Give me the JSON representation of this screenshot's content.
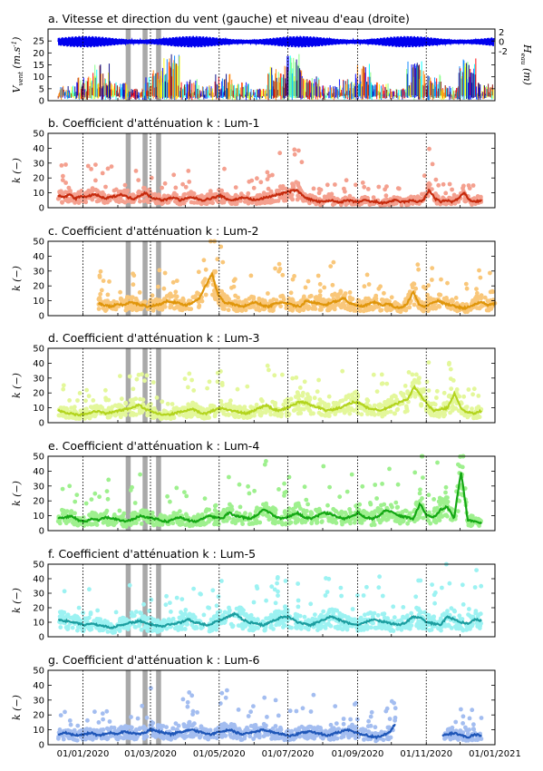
{
  "chart_data": [
    {
      "type": "line",
      "title": "a. Vitesse et direction du vent (gauche) et niveau d'eau (droite)",
      "ylabel": "V_vent (m.s^-1)",
      "ylabel_right": "H_eau (m)",
      "yticks": [
        "0",
        "5",
        "10",
        "15",
        "20",
        "25"
      ],
      "yticks_right": [
        "-2",
        "0",
        "2"
      ],
      "ylim": [
        0,
        30
      ],
      "ylim_right": [
        -2.5,
        2.5
      ],
      "grid": "vertical dotted",
      "series": [
        {
          "name": "",
          "color": "#0000ee",
          "description_values": {
            "mean": 0,
            "amplitude": 1.1
          }
        },
        {
          "name": "",
          "colormap": "jet",
          "values_approx": [
            5,
            8,
            12,
            6,
            4,
            10,
            15,
            7,
            5,
            9,
            6,
            4,
            11,
            16,
            8,
            5,
            7,
            12,
            6,
            4,
            13,
            9,
            5,
            14,
            6
          ]
        }
      ]
    },
    {
      "type": "scatter",
      "title": "b. Coefficient d'atténuation k : Lum-1",
      "ylabel": "k (−)",
      "ylim": [
        0,
        50
      ],
      "yticks": [
        "0",
        "10",
        "20",
        "30",
        "40",
        "50"
      ],
      "series": [
        {
          "name": "",
          "color_points": "#f4a08f",
          "color_line": "#c62a0d",
          "start": "2019-12-10",
          "end": "2020-12-20",
          "values": [
            8,
            7,
            9,
            6,
            8,
            7,
            9,
            8,
            6,
            7,
            8,
            9,
            7,
            6,
            8,
            10,
            7,
            6,
            5,
            6,
            7,
            5,
            6,
            7,
            6,
            5,
            6,
            7,
            8,
            6,
            5,
            6,
            7,
            6,
            5,
            6,
            7,
            8,
            9,
            10,
            11,
            12,
            9,
            6,
            5,
            4,
            4,
            5,
            4,
            4,
            5,
            4,
            4,
            5,
            4,
            4,
            3,
            4,
            5,
            4,
            4,
            5,
            4,
            5,
            12,
            6,
            4,
            5,
            4,
            6,
            10,
            5,
            4,
            5
          ]
        }
      ]
    },
    {
      "type": "scatter",
      "title": "c. Coefficient d'atténuation k : Lum-2",
      "ylabel": "k (−)",
      "ylim": [
        0,
        50
      ],
      "yticks": [
        "0",
        "10",
        "20",
        "30",
        "40",
        "50"
      ],
      "series": [
        {
          "name": "",
          "color_points": "#f9c77a",
          "color_line": "#e0960b",
          "start": "2020-01-15",
          "end": "2021-01-01",
          "values": [
            8,
            7,
            6,
            8,
            7,
            9,
            8,
            7,
            6,
            7,
            8,
            10,
            9,
            8,
            7,
            9,
            12,
            20,
            28,
            14,
            9,
            8,
            7,
            6,
            8,
            9,
            7,
            6,
            8,
            9,
            8,
            7,
            6,
            10,
            9,
            8,
            7,
            9,
            10,
            12,
            8,
            7,
            6,
            8,
            9,
            7,
            8,
            6,
            5,
            8,
            16,
            7,
            6,
            9,
            10,
            8,
            7,
            6,
            5,
            6,
            8,
            9,
            7,
            8
          ]
        }
      ]
    },
    {
      "type": "scatter",
      "title": "d. Coefficient d'atténuation k : Lum-3",
      "ylabel": "k (−)",
      "ylim": [
        0,
        50
      ],
      "yticks": [
        "0",
        "10",
        "20",
        "30",
        "40",
        "50"
      ],
      "series": [
        {
          "name": "",
          "color_points": "#e3f79a",
          "color_line": "#b3d41e",
          "start": "2019-12-10",
          "end": "2020-12-20",
          "values": [
            8,
            7,
            6,
            5,
            6,
            7,
            8,
            6,
            7,
            8,
            9,
            10,
            12,
            9,
            7,
            6,
            5,
            6,
            7,
            8,
            9,
            7,
            6,
            8,
            10,
            9,
            8,
            7,
            6,
            8,
            10,
            12,
            9,
            8,
            10,
            12,
            14,
            13,
            11,
            10,
            8,
            9,
            10,
            12,
            14,
            13,
            10,
            9,
            8,
            10,
            12,
            14,
            16,
            24,
            18,
            12,
            8,
            9,
            10,
            20,
            9,
            7,
            6,
            8
          ]
        }
      ]
    },
    {
      "type": "scatter",
      "title": "e. Coefficient d'atténuation k : Lum-4",
      "ylabel": "k (−)",
      "ylim": [
        0,
        50
      ],
      "yticks": [
        "0",
        "10",
        "20",
        "30",
        "40",
        "50"
      ],
      "series": [
        {
          "name": "",
          "color_points": "#9ef08e",
          "color_line": "#14a814",
          "start": "2019-12-10",
          "end": "2020-12-20",
          "values": [
            8,
            9,
            10,
            7,
            6,
            8,
            7,
            9,
            8,
            7,
            6,
            8,
            10,
            9,
            8,
            7,
            6,
            8,
            9,
            7,
            6,
            8,
            10,
            9,
            8,
            12,
            10,
            9,
            8,
            10,
            14,
            12,
            9,
            8,
            10,
            12,
            9,
            8,
            10,
            12,
            11,
            9,
            8,
            10,
            12,
            9,
            8,
            10,
            14,
            12,
            10,
            9,
            8,
            18,
            10,
            9,
            14,
            16,
            8,
            40,
            7,
            6,
            5
          ]
        }
      ]
    },
    {
      "type": "scatter",
      "title": "f. Coefficient d'atténuation k : Lum-5",
      "ylabel": "k (−)",
      "ylim": [
        0,
        50
      ],
      "yticks": [
        "0",
        "10",
        "20",
        "30",
        "40",
        "50"
      ],
      "series": [
        {
          "name": "",
          "color_points": "#9cf2f2",
          "color_line": "#1b9ea0",
          "start": "2019-12-10",
          "end": "2020-12-20",
          "values": [
            12,
            11,
            10,
            9,
            8,
            9,
            8,
            7,
            6,
            8,
            9,
            10,
            11,
            9,
            8,
            7,
            8,
            9,
            10,
            12,
            10,
            9,
            8,
            10,
            12,
            14,
            16,
            12,
            10,
            9,
            8,
            10,
            12,
            14,
            13,
            10,
            9,
            8,
            10,
            12,
            14,
            12,
            10,
            9,
            8,
            10,
            12,
            11,
            10,
            9,
            8,
            10,
            14,
            13,
            10,
            9,
            8,
            14,
            12,
            10,
            9,
            12,
            11
          ]
        }
      ]
    },
    {
      "type": "scatter",
      "title": "g. Coefficient d'atténuation k : Lum-6",
      "ylabel": "k (−)",
      "ylim": [
        0,
        50
      ],
      "yticks": [
        "0",
        "10",
        "20",
        "30",
        "40",
        "50"
      ],
      "xticks": [
        "01/01/2020",
        "01/03/2020",
        "01/05/2020",
        "01/07/2020",
        "01/09/2020",
        "01/11/2020",
        "01/01/2021"
      ],
      "series": [
        {
          "name": "",
          "color_points": "#a3bdf0",
          "color_line": "#1e56b8",
          "start": "2019-12-10",
          "end": "2020-12-20",
          "values": [
            7,
            8,
            7,
            6,
            7,
            8,
            6,
            7,
            8,
            7,
            9,
            8,
            7,
            8,
            10,
            9,
            8,
            7,
            8,
            9,
            10,
            9,
            8,
            7,
            8,
            9,
            10,
            8,
            7,
            8,
            9,
            10,
            9,
            8,
            7,
            6,
            7,
            8,
            9,
            8,
            7,
            6,
            8,
            9,
            10,
            8,
            7,
            6,
            5,
            6,
            8,
            14,
            null,
            null,
            null,
            null,
            null,
            null,
            6,
            7,
            8,
            6,
            5,
            7,
            6
          ]
        }
      ]
    }
  ],
  "gray_bands": [
    "2020-02-10",
    "2020-02-25",
    "2020-03-08"
  ],
  "colors": {
    "axis": "#000000",
    "gray_band": "#a9a9a9",
    "water_level": "#0000ee"
  }
}
